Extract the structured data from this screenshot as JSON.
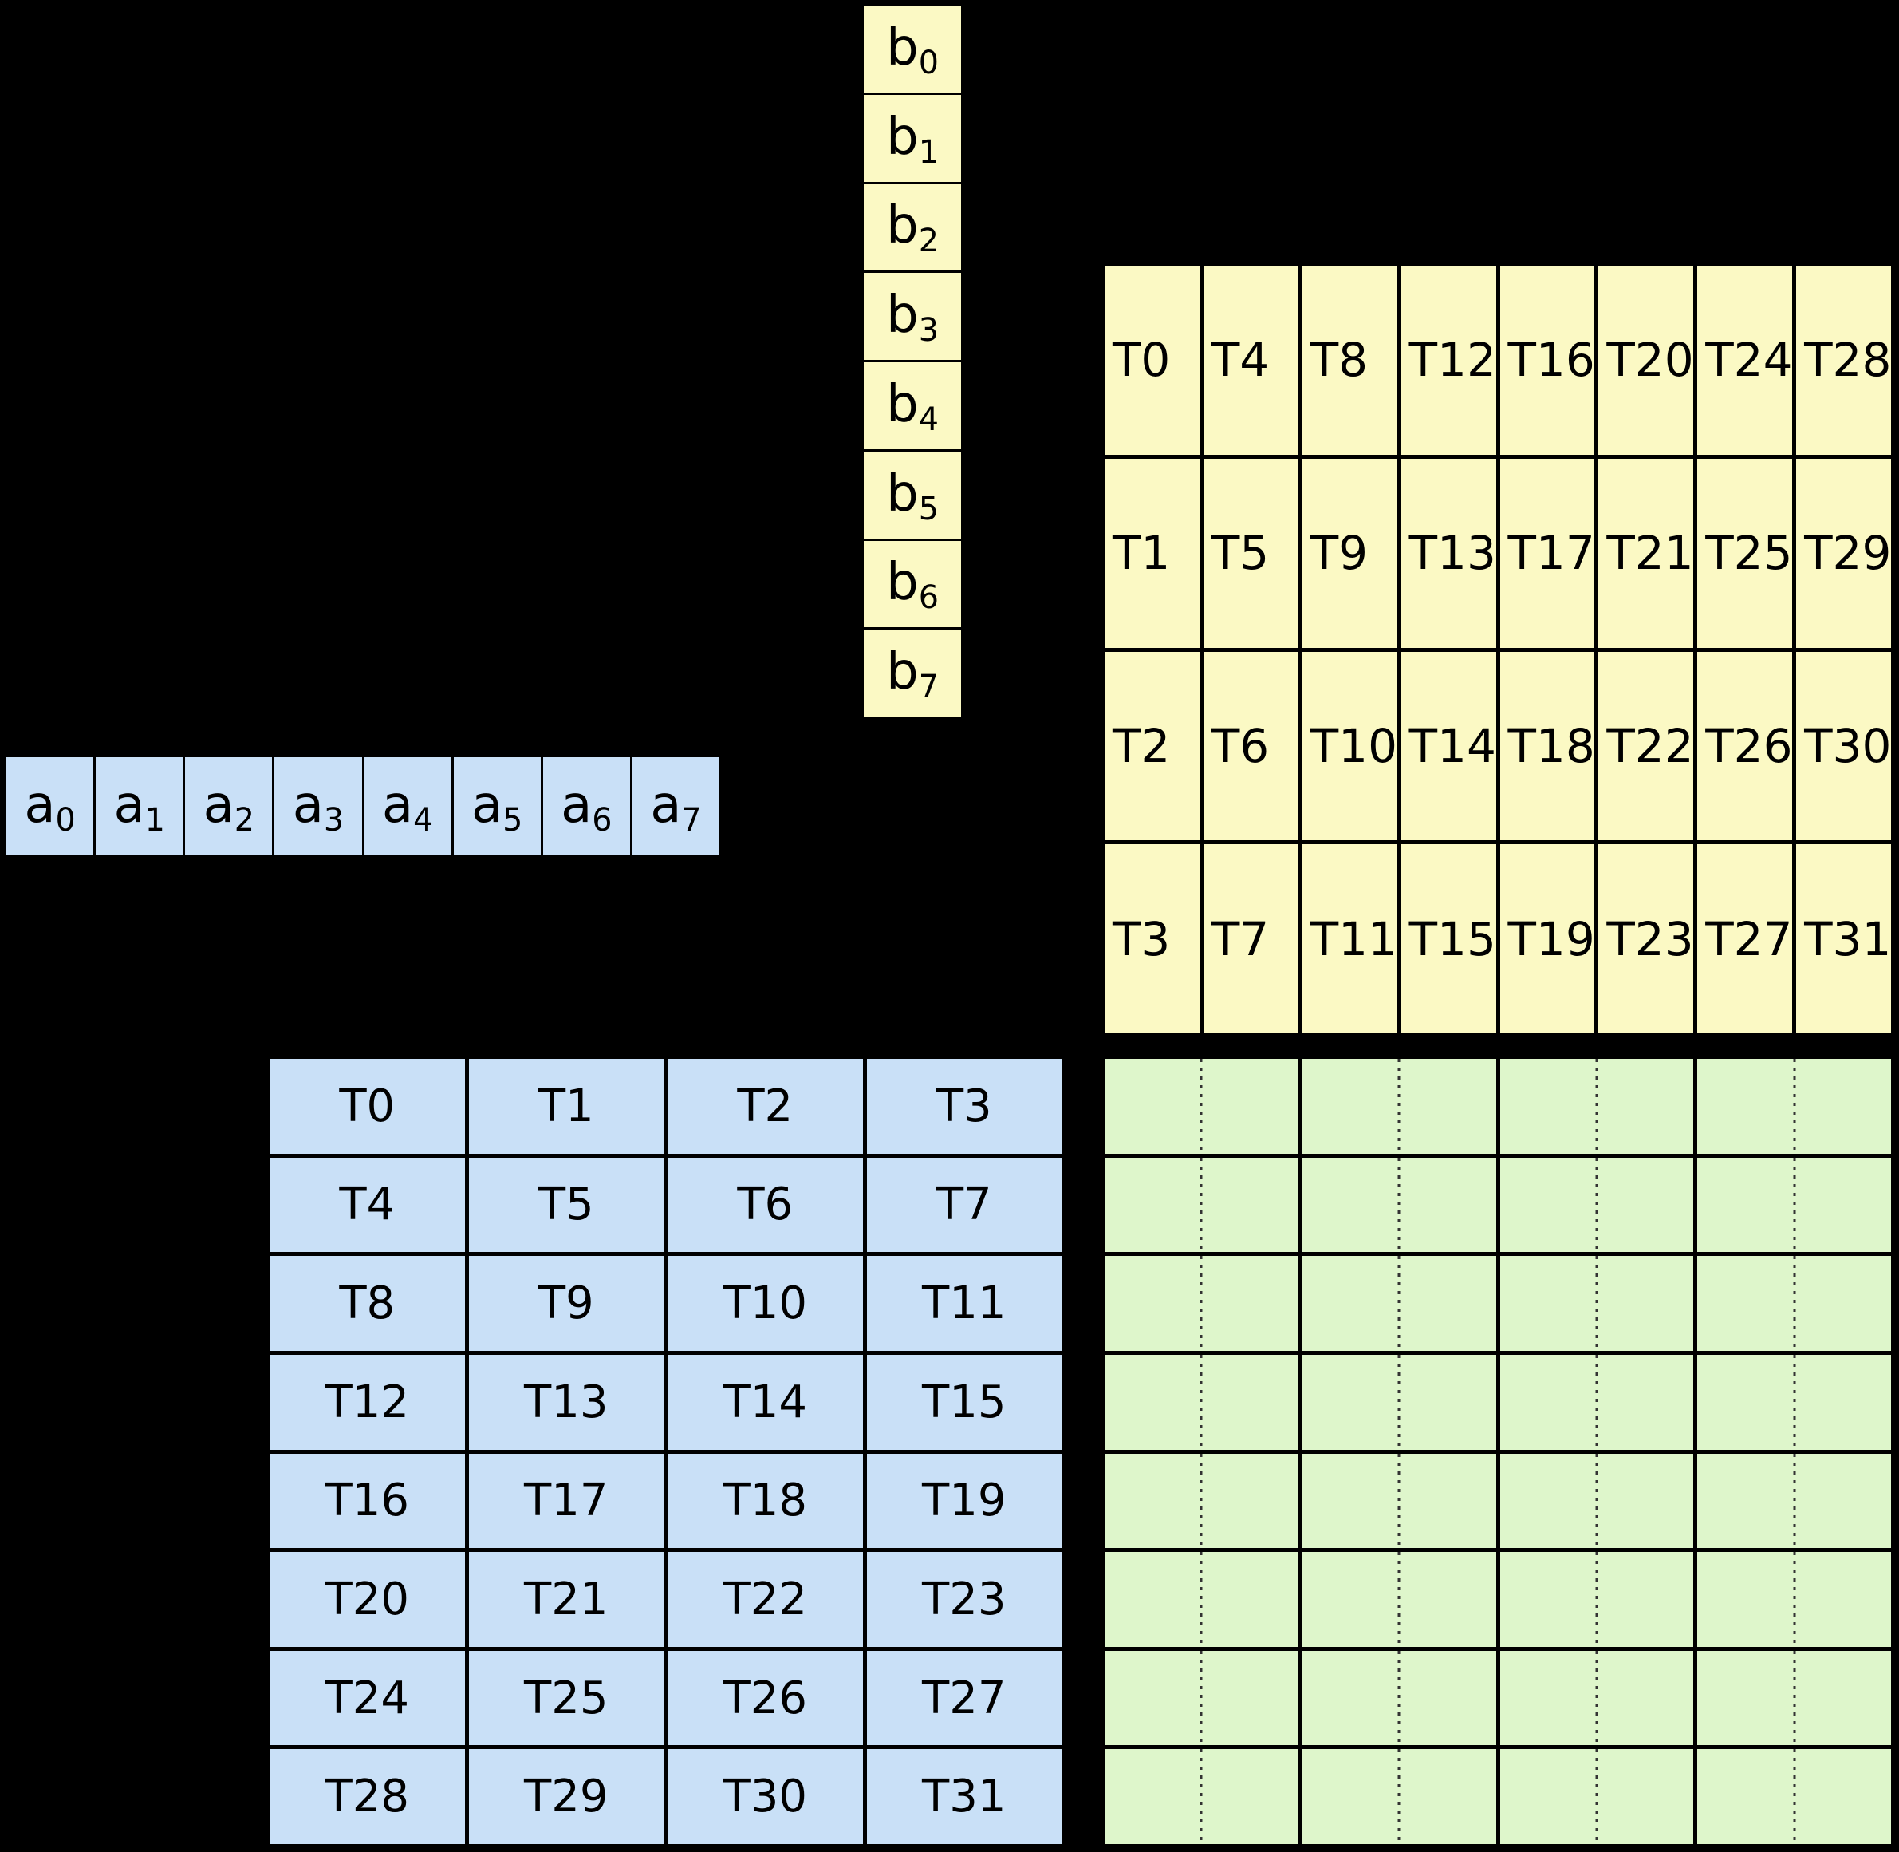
{
  "colors": {
    "background": "#000000",
    "vector_b_fill": "#FBF9C4",
    "vector_a_fill": "#C9E0F7",
    "matrix_b_fill": "#FBF9C4",
    "matrix_a_fill": "#C9E0F7",
    "accumulator_fill": "#DEF6CB",
    "divider_dots": "#333333",
    "border": "#000000"
  },
  "vector_b": {
    "cells": [
      {
        "base": "b",
        "sub": "0"
      },
      {
        "base": "b",
        "sub": "1"
      },
      {
        "base": "b",
        "sub": "2"
      },
      {
        "base": "b",
        "sub": "3"
      },
      {
        "base": "b",
        "sub": "4"
      },
      {
        "base": "b",
        "sub": "5"
      },
      {
        "base": "b",
        "sub": "6"
      },
      {
        "base": "b",
        "sub": "7"
      }
    ]
  },
  "vector_a": {
    "cells": [
      {
        "base": "a",
        "sub": "0"
      },
      {
        "base": "a",
        "sub": "1"
      },
      {
        "base": "a",
        "sub": "2"
      },
      {
        "base": "a",
        "sub": "3"
      },
      {
        "base": "a",
        "sub": "4"
      },
      {
        "base": "a",
        "sub": "5"
      },
      {
        "base": "a",
        "sub": "6"
      },
      {
        "base": "a",
        "sub": "7"
      }
    ]
  },
  "matrix_b_thread_grid": {
    "rows": [
      [
        "T0",
        "T4",
        "T8",
        "T12",
        "T16",
        "T20",
        "T24",
        "T28"
      ],
      [
        "T1",
        "T5",
        "T9",
        "T13",
        "T17",
        "T21",
        "T25",
        "T29"
      ],
      [
        "T2",
        "T6",
        "T10",
        "T14",
        "T18",
        "T22",
        "T26",
        "T30"
      ],
      [
        "T3",
        "T7",
        "T11",
        "T15",
        "T19",
        "T23",
        "T27",
        "T31"
      ]
    ]
  },
  "matrix_a_thread_grid": {
    "rows": [
      [
        "T0",
        "T1",
        "T2",
        "T3"
      ],
      [
        "T4",
        "T5",
        "T6",
        "T7"
      ],
      [
        "T8",
        "T9",
        "T10",
        "T11"
      ],
      [
        "T12",
        "T13",
        "T14",
        "T15"
      ],
      [
        "T16",
        "T17",
        "T18",
        "T19"
      ],
      [
        "T20",
        "T21",
        "T22",
        "T23"
      ],
      [
        "T24",
        "T25",
        "T26",
        "T27"
      ],
      [
        "T28",
        "T29",
        "T30",
        "T31"
      ]
    ]
  },
  "accumulator_grid": {
    "row_count": 8,
    "col_count": 4,
    "cells_empty": true,
    "vertical_split": "dotted"
  }
}
